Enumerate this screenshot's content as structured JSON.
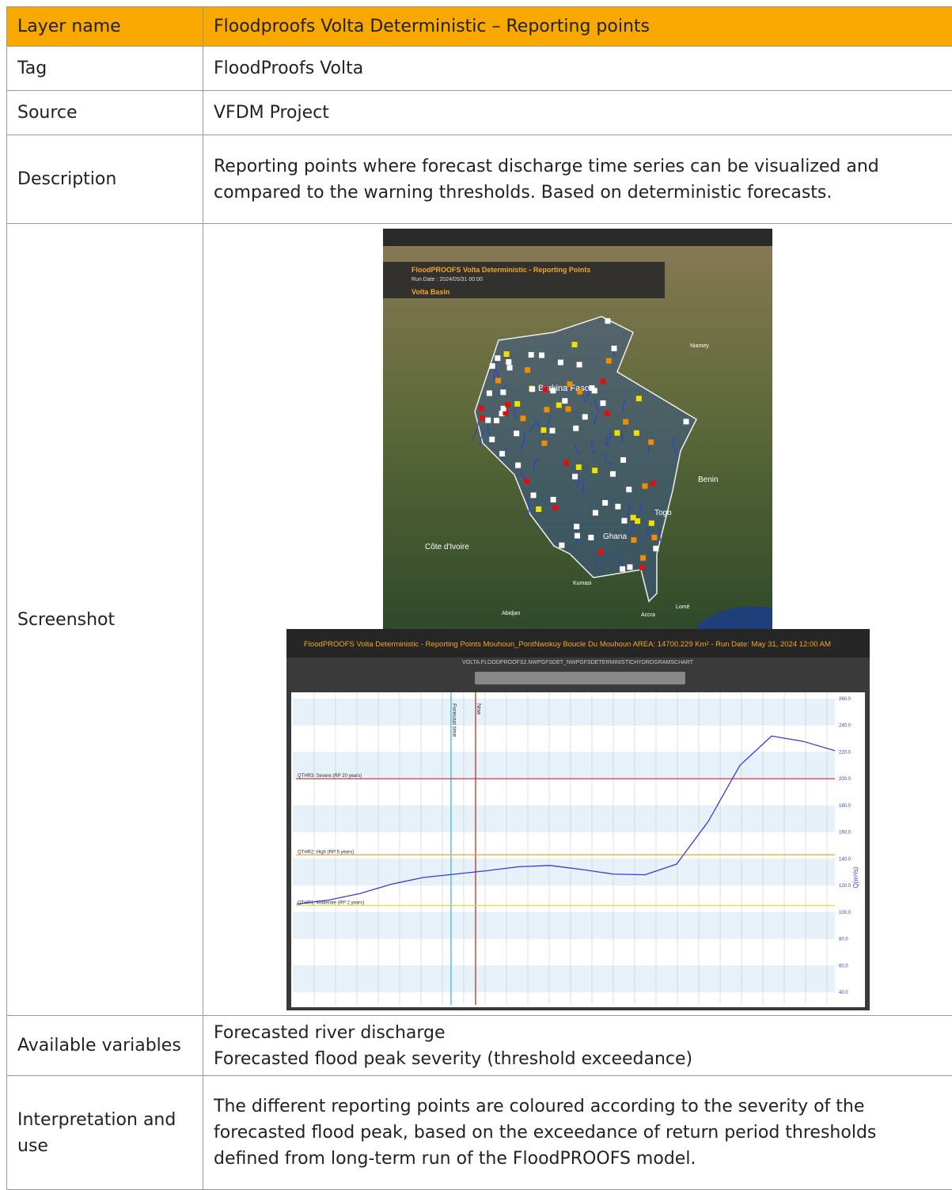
{
  "table": {
    "header": [
      "Layer name",
      "Floodproofs Volta Deterministic – Reporting points"
    ],
    "rows": [
      [
        "Tag",
        "FloodProofs Volta"
      ],
      [
        "Source",
        "VFDM Project"
      ],
      [
        "Description",
        "Reporting points where forecast discharge time series can be visualized and compared to the warning thresholds. Based on deterministic forecasts."
      ],
      [
        "Screenshot"
      ],
      [
        "Available variables",
        [
          "Forecasted river discharge",
          "Forecasted flood peak severity (threshold exceedance)"
        ]
      ],
      [
        "Interpretation and use",
        "The different reporting points are coloured according to the severity of the forecasted flood peak, based on the exceedance of return period thresholds defined from long-term run of the FloodPROOFS model."
      ]
    ]
  },
  "screenshot": {
    "map": {
      "layer": "FloodPROOFS Volta Deterministic - Reporting Points",
      "run_date": "Run Date : 2024/05/31 00:00",
      "basin": "Volta Basin",
      "places": [
        "Burkina Faso",
        "Benin",
        "Togo",
        "Ghana",
        "Côte d'Ivoire",
        "Niamey",
        "Kumasi",
        "Accra",
        "Lomé",
        "Abidjan"
      ]
    },
    "chart": {
      "title": "FloodPROOFS Volta Deterministic - Reporting Points Mouhoun_PontNwokuy   Boucle Du Mouhoun AREA: 14700.229 Km² - Run Date: May 31, 2024 12:00 AM",
      "subtitle": "VOLTA.FLOODPROOFS2.NWPGFSDET_NWPGFSDETERMINISTICHYDROGRAMSCHART",
      "y_label": "Q(m³/s)",
      "ylim": [
        40,
        260
      ],
      "yticks": [
        {
          "value": 40,
          "label": "40.0"
        },
        {
          "value": 60,
          "label": "60.0"
        },
        {
          "value": 80,
          "label": "80.0"
        },
        {
          "value": 100,
          "label": "100.0"
        },
        {
          "value": 120,
          "label": "120.0"
        },
        {
          "value": 140,
          "label": "140.0"
        },
        {
          "value": 160,
          "label": "160.0"
        },
        {
          "value": 180,
          "label": "180.0"
        },
        {
          "value": 200,
          "label": "200.0"
        },
        {
          "value": 220,
          "label": "220.0"
        },
        {
          "value": 240,
          "label": "240.0"
        },
        {
          "value": 260,
          "label": "260.0"
        }
      ],
      "thresholds": [
        {
          "name": "QTHR3: Severe (RP 20 years)",
          "value": 200,
          "color": "#e0202a"
        },
        {
          "name": "QTHR2: High (RP 5 years)",
          "value": 143,
          "color": "#f39c12"
        },
        {
          "name": "QTHR1: Moderate (RP 2 years)",
          "value": 105,
          "color": "#e8e020"
        }
      ],
      "markers": [
        "Forecast time",
        "Now"
      ],
      "series": {
        "color": "#3a3ad6",
        "values": [
          106,
          109,
          114,
          121,
          126,
          128.5,
          131,
          134,
          135,
          132,
          128.5,
          128,
          136,
          168,
          210,
          232,
          228,
          221
        ]
      }
    }
  }
}
